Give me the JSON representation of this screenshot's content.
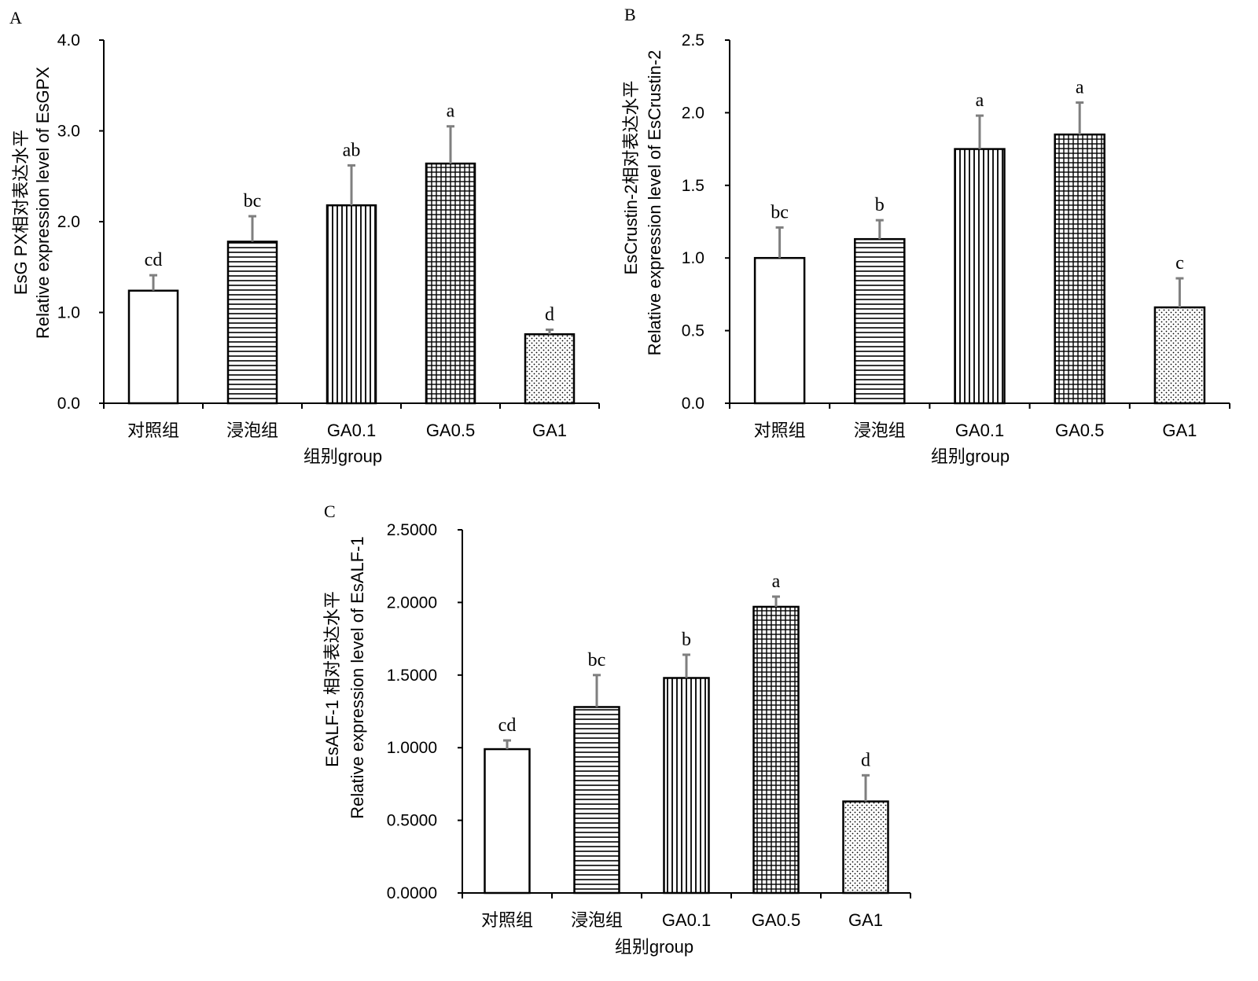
{
  "chart_data": [
    {
      "panel": "A",
      "type": "bar",
      "categories": [
        "对照组",
        "浸泡组",
        "GA0.1",
        "GA0.5",
        "GA1"
      ],
      "values": [
        1.24,
        1.78,
        2.18,
        2.64,
        0.76
      ],
      "errors": [
        0.17,
        0.28,
        0.44,
        0.41,
        0.05
      ],
      "significance": [
        "cd",
        "bc",
        "ab",
        "a",
        "d"
      ],
      "patterns": [
        "none",
        "horizontal",
        "vertical",
        "grid-fine",
        "dots"
      ],
      "ylabel_line1": "EsG PX相对表达水平",
      "ylabel_line2": "Relative expression level of EsGPX",
      "xlabel": "组别group",
      "ylim": [
        0,
        4
      ],
      "yticks": [
        "0.0",
        "1.0",
        "2.0",
        "3.0",
        "4.0"
      ]
    },
    {
      "panel": "B",
      "type": "bar",
      "categories": [
        "对照组",
        "浸泡组",
        "GA0.1",
        "GA0.5",
        "GA1"
      ],
      "values": [
        1.0,
        1.13,
        1.75,
        1.85,
        0.66
      ],
      "errors": [
        0.21,
        0.13,
        0.23,
        0.22,
        0.2
      ],
      "significance": [
        "bc",
        "b",
        "a",
        "a",
        "c"
      ],
      "patterns": [
        "none",
        "horizontal",
        "vertical",
        "grid-fine",
        "dots"
      ],
      "ylabel_line1": "EsCrustin-2相对表达水平",
      "ylabel_line2": "Relative expression level of EsCrustin-2",
      "xlabel": "组别group",
      "ylim": [
        0,
        2.5
      ],
      "yticks": [
        "0.0",
        "0.5",
        "1.0",
        "1.5",
        "2.0",
        "2.5"
      ]
    },
    {
      "panel": "C",
      "type": "bar",
      "categories": [
        "对照组",
        "浸泡组",
        "GA0.1",
        "GA0.5",
        "GA1"
      ],
      "values": [
        0.99,
        1.28,
        1.48,
        1.97,
        0.63
      ],
      "errors": [
        0.06,
        0.22,
        0.16,
        0.07,
        0.18
      ],
      "significance": [
        "cd",
        "bc",
        "b",
        "a",
        "d"
      ],
      "patterns": [
        "none",
        "horizontal",
        "vertical",
        "grid-fine",
        "dots"
      ],
      "ylabel_line1": "EsALF-1 相对表达水平",
      "ylabel_line2": "Relative expression level of EsALF-1",
      "xlabel": "组别group",
      "ylim": [
        0,
        2.5
      ],
      "yticks": [
        "0.0000",
        "0.5000",
        "1.0000",
        "1.5000",
        "2.0000",
        "2.5000"
      ]
    }
  ]
}
